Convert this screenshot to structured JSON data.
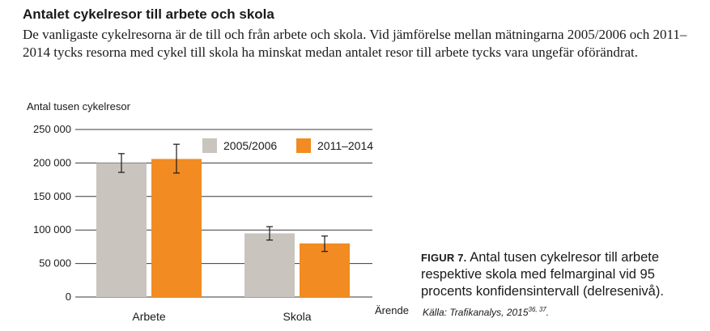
{
  "header": {
    "title": "Antalet cykelresor till arbete och skola",
    "description": "De vanligaste cykelresorna är de till och från arbete och skola. Vid jämförelse mellan mätningarna 2005/2006 och 2011–2014 tycks resorna med cykel till skola ha minskat medan antalet resor till arbete tycks vara ungefär oförändrat."
  },
  "chart_data": {
    "type": "bar",
    "ylabel": "Antal tusen cykelresor",
    "xlabel": "Ärende",
    "categories": [
      "Arbete",
      "Skola"
    ],
    "ylim": [
      0,
      250000
    ],
    "yticks": [
      0,
      50000,
      100000,
      150000,
      200000,
      250000
    ],
    "ytick_labels": [
      "0",
      "50 000",
      "100 000",
      "150 000",
      "200 000",
      "250 000"
    ],
    "grid": true,
    "legend": "top-right",
    "series": [
      {
        "name": "2005/2006",
        "color": "#c9c4be",
        "values": [
          200000,
          95000
        ],
        "err_low": [
          186000,
          85000
        ],
        "err_high": [
          214000,
          105000
        ]
      },
      {
        "name": "2011–2014",
        "color": "#f28b21",
        "values": [
          206000,
          80000
        ],
        "err_low": [
          185000,
          68000
        ],
        "err_high": [
          228000,
          91000
        ]
      }
    ]
  },
  "caption": {
    "label": "FIGUR 7.",
    "text": "Antal tusen cykelresor till arbete respektive skola med felmarginal vid 95 procents konfidensintervall (delresenivå).",
    "source": "Källa: Trafikanalys, 2015",
    "source_refs": "36, 37",
    "source_end": "."
  }
}
